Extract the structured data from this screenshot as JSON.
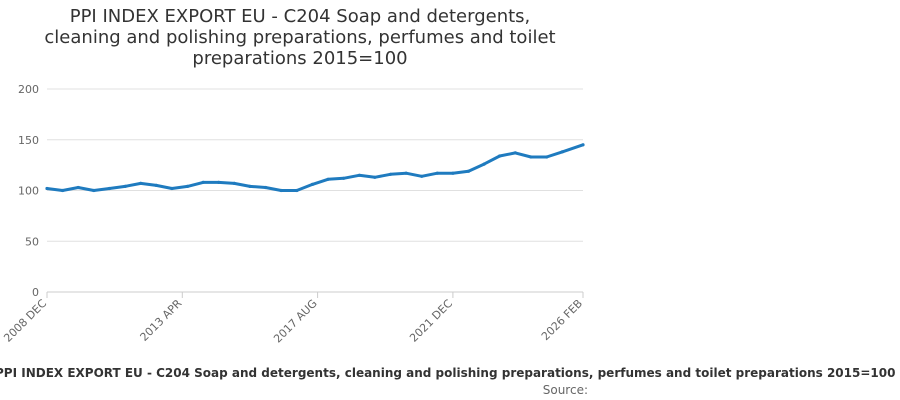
{
  "title": "PPI INDEX EXPORT EU - C204 Soap and detergents, cleaning and polishing preparations, perfumes and toilet preparations 2015=100",
  "colors": {
    "series": "#1f7bbf",
    "grid": "#e0e0e0",
    "axis": "#cccccc",
    "text": "#333333",
    "muted": "#666666"
  },
  "chart_data": {
    "type": "line",
    "title": "PPI INDEX EXPORT EU - C204 Soap and detergents, cleaning and polishing preparations, perfumes and toilet preparations 2015=100",
    "xlabel": "",
    "ylabel": "",
    "ylim": [
      0,
      200
    ],
    "yticks": [
      0,
      50,
      100,
      150,
      200
    ],
    "grid": true,
    "x_range": [
      "2008 DEC",
      "2026 FEB"
    ],
    "x_tick_labels": [
      "2008 DEC",
      "2013 APR",
      "2017 AUG",
      "2021 DEC",
      "2026 FEB"
    ],
    "series": [
      {
        "name": "PPI INDEX EXPORT EU - C204 Soap and detergents, cleaning and polishing preparations, perfumes and toilet preparations 2015=100",
        "x": [
          "2008 DEC",
          "2009 JUN",
          "2009 DEC",
          "2010 JUN",
          "2010 DEC",
          "2011 JUN",
          "2011 DEC",
          "2012 JUN",
          "2012 DEC",
          "2013 JUN",
          "2013 DEC",
          "2014 JUN",
          "2014 DEC",
          "2015 JUN",
          "2015 DEC",
          "2016 JUN",
          "2016 DEC",
          "2017 JUN",
          "2017 DEC",
          "2018 JUN",
          "2018 DEC",
          "2019 JUN",
          "2019 DEC",
          "2020 JUN",
          "2020 DEC",
          "2021 JUN",
          "2021 DEC",
          "2022 JUN",
          "2022 DEC",
          "2023 JUN",
          "2023 DEC",
          "2024 JUN",
          "2024 DEC",
          "2025 JUN",
          "2026 FEB"
        ],
        "values": [
          102,
          100,
          103,
          100,
          102,
          104,
          107,
          105,
          102,
          104,
          108,
          108,
          107,
          104,
          103,
          100,
          100,
          106,
          111,
          112,
          115,
          113,
          116,
          117,
          114,
          117,
          117,
          119,
          126,
          134,
          137,
          133,
          133,
          138,
          145
        ]
      }
    ],
    "legend": [
      "PPI INDEX EXPORT EU - C204 Soap and detergents, cleaning and polishing preparations, perfumes and toilet preparations 2015=100"
    ]
  },
  "legend_label": "PPI INDEX EXPORT EU - C204 Soap and detergents, cleaning and polishing preparations, perfumes and toilet preparations 2015=100",
  "source_label": "Source:"
}
